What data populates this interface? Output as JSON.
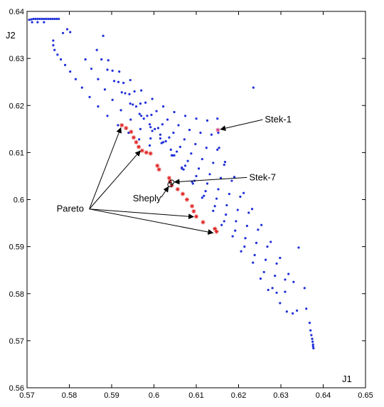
{
  "chart_data": {
    "type": "scatter",
    "xlabel": "J1",
    "ylabel": "J2",
    "xlim": [
      0.57,
      0.65
    ],
    "ylim": [
      0.56,
      0.64
    ],
    "xticks": [
      "0.57",
      "0.58",
      "0.59",
      "0.6",
      "0.61",
      "0.62",
      "0.63",
      "0.64",
      "0.65"
    ],
    "yticks": [
      "0.56",
      "0.57",
      "0.58",
      "0.59",
      "0.6",
      "0.61",
      "0.62",
      "0.63",
      "0.64"
    ],
    "grid": false,
    "colors": {
      "all_points": "#1f2fd8",
      "pareto": "#e02020",
      "annotation": "#000000"
    },
    "series": [
      {
        "marker": "dot",
        "color": "#1f2fd8",
        "points": [
          [
            0.5705,
            0.6382
          ],
          [
            0.571,
            0.6383
          ],
          [
            0.5715,
            0.6384
          ],
          [
            0.572,
            0.6384
          ],
          [
            0.5725,
            0.6384
          ],
          [
            0.573,
            0.6384
          ],
          [
            0.5735,
            0.6384
          ],
          [
            0.574,
            0.6384
          ],
          [
            0.5745,
            0.6384
          ],
          [
            0.575,
            0.6384
          ],
          [
            0.5755,
            0.6384
          ],
          [
            0.576,
            0.6384
          ],
          [
            0.5765,
            0.6384
          ],
          [
            0.577,
            0.6384
          ],
          [
            0.5775,
            0.6384
          ],
          [
            0.5712,
            0.6377
          ],
          [
            0.5725,
            0.6377
          ],
          [
            0.574,
            0.6377
          ],
          [
            0.5762,
            0.6338
          ],
          [
            0.5762,
            0.6328
          ],
          [
            0.5765,
            0.6318
          ],
          [
            0.5772,
            0.6308
          ],
          [
            0.578,
            0.6298
          ],
          [
            0.579,
            0.6286
          ],
          [
            0.5802,
            0.6272
          ],
          [
            0.5815,
            0.6256
          ],
          [
            0.583,
            0.6238
          ],
          [
            0.5848,
            0.6218
          ],
          [
            0.5868,
            0.6198
          ],
          [
            0.589,
            0.6178
          ],
          [
            0.5915,
            0.6158
          ],
          [
            0.594,
            0.6142
          ],
          [
            0.5965,
            0.6128
          ],
          [
            0.599,
            0.6115
          ],
          [
            0.5785,
            0.6354
          ],
          [
            0.5795,
            0.6362
          ],
          [
            0.5802,
            0.6356
          ],
          [
            0.588,
            0.6348
          ],
          [
            0.6235,
            0.6238
          ],
          [
            0.5838,
            0.6298
          ],
          [
            0.5852,
            0.6278
          ],
          [
            0.5868,
            0.6256
          ],
          [
            0.5884,
            0.6234
          ],
          [
            0.5902,
            0.6212
          ],
          [
            0.5922,
            0.619
          ],
          [
            0.5945,
            0.617
          ],
          [
            0.5968,
            0.615
          ],
          [
            0.5992,
            0.613
          ],
          [
            0.5865,
            0.6318
          ],
          [
            0.5876,
            0.6298
          ],
          [
            0.589,
            0.6276
          ],
          [
            0.5906,
            0.6252
          ],
          [
            0.5924,
            0.6228
          ],
          [
            0.5944,
            0.6204
          ],
          [
            0.5966,
            0.6182
          ],
          [
            0.599,
            0.616
          ],
          [
            0.6015,
            0.6138
          ],
          [
            0.5892,
            0.6296
          ],
          [
            0.5902,
            0.6274
          ],
          [
            0.5916,
            0.625
          ],
          [
            0.5932,
            0.6226
          ],
          [
            0.595,
            0.6202
          ],
          [
            0.597,
            0.6178
          ],
          [
            0.5992,
            0.6154
          ],
          [
            0.6015,
            0.613
          ],
          [
            0.604,
            0.6106
          ],
          [
            0.5918,
            0.6272
          ],
          [
            0.5928,
            0.6248
          ],
          [
            0.5942,
            0.6224
          ],
          [
            0.5958,
            0.6198
          ],
          [
            0.5976,
            0.6172
          ],
          [
            0.5996,
            0.6146
          ],
          [
            0.6018,
            0.612
          ],
          [
            0.6042,
            0.6094
          ],
          [
            0.6066,
            0.6068
          ],
          [
            0.5944,
            0.6254
          ],
          [
            0.5954,
            0.623
          ],
          [
            0.5968,
            0.6204
          ],
          [
            0.5984,
            0.6178
          ],
          [
            0.6002,
            0.615
          ],
          [
            0.6022,
            0.6122
          ],
          [
            0.6044,
            0.6094
          ],
          [
            0.6066,
            0.6066
          ],
          [
            0.609,
            0.6038
          ],
          [
            0.597,
            0.6232
          ],
          [
            0.598,
            0.6206
          ],
          [
            0.5994,
            0.618
          ],
          [
            0.601,
            0.6152
          ],
          [
            0.6028,
            0.6124
          ],
          [
            0.6048,
            0.6094
          ],
          [
            0.607,
            0.6064
          ],
          [
            0.6092,
            0.6034
          ],
          [
            0.6114,
            0.6004
          ],
          [
            0.5996,
            0.6214
          ],
          [
            0.6006,
            0.6188
          ],
          [
            0.602,
            0.616
          ],
          [
            0.6036,
            0.6132
          ],
          [
            0.6054,
            0.6102
          ],
          [
            0.6074,
            0.6072
          ],
          [
            0.6096,
            0.604
          ],
          [
            0.6118,
            0.6008
          ],
          [
            0.614,
            0.5976
          ],
          [
            0.616,
            0.5946
          ],
          [
            0.6022,
            0.6198
          ],
          [
            0.6032,
            0.617
          ],
          [
            0.6046,
            0.6142
          ],
          [
            0.6062,
            0.6112
          ],
          [
            0.608,
            0.6082
          ],
          [
            0.61,
            0.605
          ],
          [
            0.6122,
            0.6018
          ],
          [
            0.6144,
            0.5986
          ],
          [
            0.6166,
            0.5954
          ],
          [
            0.6186,
            0.5922
          ],
          [
            0.6206,
            0.589
          ],
          [
            0.6048,
            0.6186
          ],
          [
            0.6058,
            0.6158
          ],
          [
            0.6072,
            0.6128
          ],
          [
            0.6088,
            0.6098
          ],
          [
            0.6106,
            0.6066
          ],
          [
            0.6126,
            0.6034
          ],
          [
            0.6148,
            0.6002
          ],
          [
            0.617,
            0.5968
          ],
          [
            0.6192,
            0.5934
          ],
          [
            0.6214,
            0.59
          ],
          [
            0.6234,
            0.5866
          ],
          [
            0.6252,
            0.5832
          ],
          [
            0.627,
            0.5808
          ],
          [
            0.629,
            0.5802
          ],
          [
            0.631,
            0.5804
          ],
          [
            0.6074,
            0.6178
          ],
          [
            0.6084,
            0.6148
          ],
          [
            0.6098,
            0.6118
          ],
          [
            0.6114,
            0.6086
          ],
          [
            0.6132,
            0.6054
          ],
          [
            0.6152,
            0.6022
          ],
          [
            0.6172,
            0.5988
          ],
          [
            0.6194,
            0.5954
          ],
          [
            0.6216,
            0.5918
          ],
          [
            0.6238,
            0.5882
          ],
          [
            0.626,
            0.5846
          ],
          [
            0.628,
            0.5812
          ],
          [
            0.6298,
            0.578
          ],
          [
            0.6314,
            0.5762
          ],
          [
            0.6328,
            0.5758
          ],
          [
            0.6338,
            0.5764
          ],
          [
            0.61,
            0.6172
          ],
          [
            0.611,
            0.6142
          ],
          [
            0.6124,
            0.611
          ],
          [
            0.614,
            0.6078
          ],
          [
            0.6158,
            0.6046
          ],
          [
            0.6178,
            0.6012
          ],
          [
            0.6198,
            0.5978
          ],
          [
            0.622,
            0.5944
          ],
          [
            0.6242,
            0.5908
          ],
          [
            0.6264,
            0.5872
          ],
          [
            0.6286,
            0.5838
          ],
          [
            0.6126,
            0.6168
          ],
          [
            0.6136,
            0.6138
          ],
          [
            0.615,
            0.6106
          ],
          [
            0.6166,
            0.6074
          ],
          [
            0.6184,
            0.604
          ],
          [
            0.6204,
            0.6006
          ],
          [
            0.6224,
            0.5972
          ],
          [
            0.6246,
            0.5936
          ],
          [
            0.6268,
            0.59
          ],
          [
            0.629,
            0.5864
          ],
          [
            0.631,
            0.583
          ],
          [
            0.615,
            0.6172
          ],
          [
            0.6152,
            0.6142
          ],
          [
            0.6154,
            0.611
          ],
          [
            0.6168,
            0.608
          ],
          [
            0.619,
            0.6048
          ],
          [
            0.6212,
            0.6014
          ],
          [
            0.6232,
            0.598
          ],
          [
            0.6254,
            0.5946
          ],
          [
            0.6276,
            0.591
          ],
          [
            0.6298,
            0.5876
          ],
          [
            0.6318,
            0.5842
          ],
          [
            0.633,
            0.5825
          ],
          [
            0.6342,
            0.5898
          ],
          [
            0.6356,
            0.5812
          ],
          [
            0.636,
            0.5768
          ],
          [
            0.6368,
            0.5738
          ],
          [
            0.637,
            0.5722
          ],
          [
            0.6372,
            0.5712
          ],
          [
            0.6374,
            0.5704
          ],
          [
            0.6375,
            0.5698
          ],
          [
            0.6376,
            0.5692
          ],
          [
            0.6376,
            0.5688
          ],
          [
            0.6377,
            0.5684
          ]
        ]
      },
      {
        "marker": "star",
        "color": "#e02020",
        "points": [
          [
            0.5924,
            0.6158
          ],
          [
            0.5934,
            0.6152
          ],
          [
            0.5946,
            0.6144
          ],
          [
            0.5952,
            0.6132
          ],
          [
            0.5958,
            0.6122
          ],
          [
            0.5964,
            0.6112
          ],
          [
            0.5972,
            0.6104
          ],
          [
            0.5982,
            0.61
          ],
          [
            0.5992,
            0.6098
          ],
          [
            0.6008,
            0.6072
          ],
          [
            0.6012,
            0.6064
          ],
          [
            0.6036,
            0.6046
          ],
          [
            0.6038,
            0.6038
          ],
          [
            0.6042,
            0.603
          ],
          [
            0.6056,
            0.6022
          ],
          [
            0.6068,
            0.6012
          ],
          [
            0.6078,
            0.6
          ],
          [
            0.609,
            0.5986
          ],
          [
            0.6094,
            0.5975
          ],
          [
            0.61,
            0.5964
          ],
          [
            0.6116,
            0.5952
          ],
          [
            0.6144,
            0.5938
          ],
          [
            0.6148,
            0.5932
          ]
        ]
      }
    ],
    "annotations": [
      {
        "label": "Stek-1",
        "x": 0.6151,
        "y": 0.6148,
        "text_x": 0.6262,
        "text_y": 0.617,
        "marker": "star"
      },
      {
        "label": "Stek-7",
        "x": 0.6042,
        "y": 0.6037,
        "text_x": 0.6225,
        "text_y": 0.6047,
        "marker": "circle"
      },
      {
        "label": "Sheply",
        "x": 0.6038,
        "y": 0.6032,
        "text_x": 0.595,
        "text_y": 0.6002,
        "marker": "circle"
      },
      {
        "label": "Pareto",
        "text_x": 0.577,
        "text_y": 0.598,
        "arrows": [
          [
            0.5924,
            0.6158
          ],
          [
            0.5972,
            0.6108
          ],
          [
            0.61,
            0.5963
          ],
          [
            0.6146,
            0.5928
          ]
        ]
      }
    ]
  }
}
